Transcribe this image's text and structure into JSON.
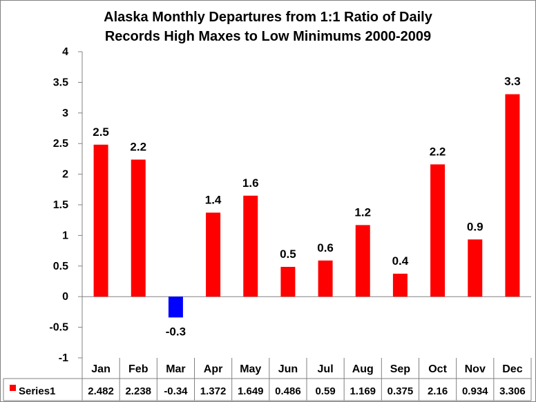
{
  "chart_data": {
    "type": "bar",
    "title": "Alaska Monthly Departures from 1:1 Ratio of Daily Records High Maxes to Low Minimums 2000-2009",
    "title_lines": [
      "Alaska Monthly Departures from 1:1 Ratio of Daily",
      "Records High Maxes to Low Minimums  2000-2009"
    ],
    "categories": [
      "Jan",
      "Feb",
      "Mar",
      "Apr",
      "May",
      "Jun",
      "Jul",
      "Aug",
      "Sep",
      "Oct",
      "Nov",
      "Dec"
    ],
    "series": [
      {
        "name": "Series1",
        "values": [
          2.482,
          2.238,
          -0.34,
          1.372,
          1.649,
          0.486,
          0.59,
          1.169,
          0.375,
          2.16,
          0.934,
          3.306
        ],
        "data_labels": [
          "2.5",
          "2.2",
          "-0.3",
          "1.4",
          "1.6",
          "0.5",
          "0.6",
          "1.2",
          "0.4",
          "2.2",
          "0.9",
          "3.3"
        ],
        "table_values": [
          "2.482",
          "2.238",
          "-0.34",
          "1.372",
          "1.649",
          "0.486",
          "0.59",
          "1.169",
          "0.375",
          "2.16",
          "0.934",
          "3.306"
        ]
      }
    ],
    "ylim": [
      -1,
      4
    ],
    "y_ticks": [
      -1,
      -0.5,
      0,
      0.5,
      1,
      1.5,
      2,
      2.5,
      3,
      3.5,
      4
    ],
    "y_tick_labels": [
      "-1",
      "-0.5",
      "0",
      "0.5",
      "1",
      "1.5",
      "2",
      "2.5",
      "3",
      "3.5",
      "4"
    ],
    "grid": false,
    "legend": "data-table",
    "colors": {
      "positive": "#ff0000",
      "negative": "#0000ff",
      "axis": "#808080"
    }
  }
}
